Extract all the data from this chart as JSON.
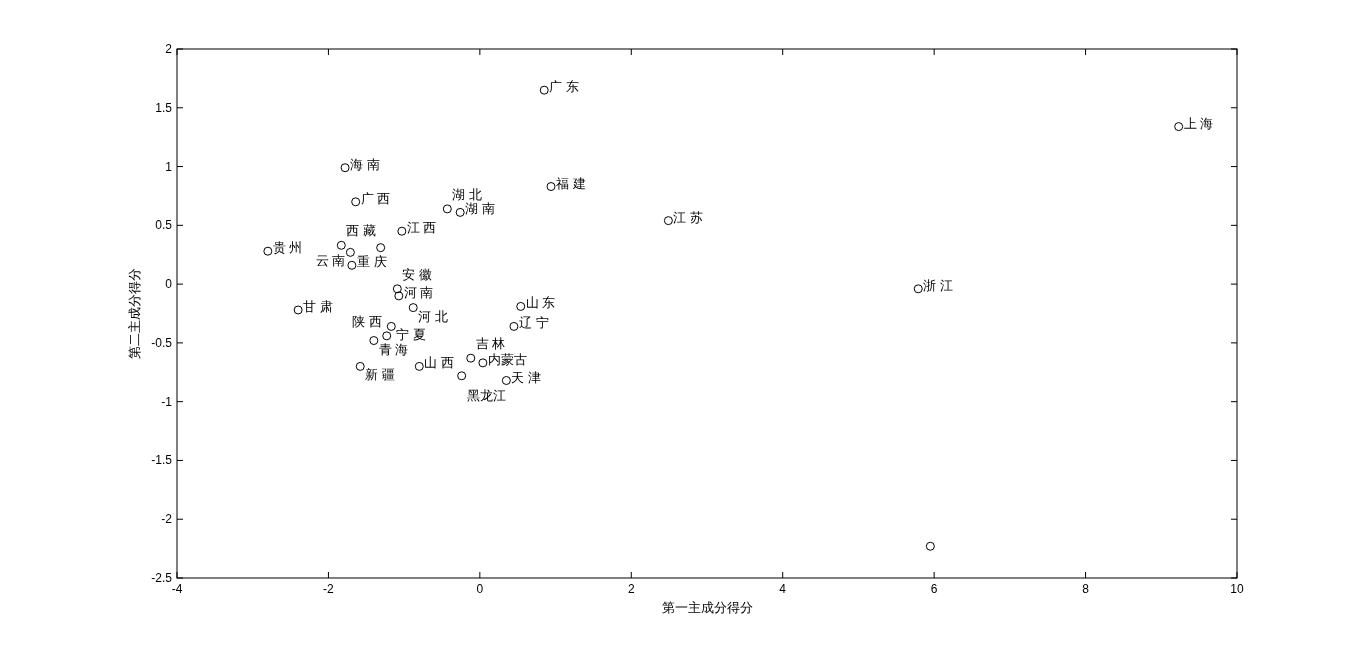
{
  "chart_data": {
    "type": "scatter",
    "xlabel": "第一主成分得分",
    "ylabel": "第二主成分得分",
    "marker": "circle",
    "xlim": [
      -4,
      10
    ],
    "ylim": [
      -2.5,
      2
    ],
    "xticks": [
      -4,
      -2,
      0,
      2,
      4,
      6,
      8,
      10
    ],
    "yticks": [
      -2.5,
      -2,
      -1.5,
      -1,
      -0.5,
      0,
      0.5,
      1,
      1.5,
      2
    ],
    "x": [
      0.85,
      9.23,
      -1.78,
      0.94,
      -1.64,
      -0.43,
      -0.26,
      2.49,
      -1.03,
      -2.8,
      -1.83,
      -1.71,
      -1.31,
      -1.69,
      5.79,
      -1.09,
      -1.07,
      -2.4,
      -0.88,
      0.54,
      0.45,
      -1.17,
      -1.4,
      -1.23,
      -1.58,
      -0.8,
      -0.12,
      0.04,
      -0.24,
      0.35,
      5.95
    ],
    "series": [
      {
        "color": "#000000",
        "values": [
          1.65,
          1.34,
          0.99,
          0.83,
          0.7,
          0.64,
          0.61,
          0.54,
          0.45,
          0.28,
          0.33,
          0.27,
          0.31,
          0.16,
          -0.04,
          -0.04,
          -0.1,
          -0.22,
          -0.2,
          -0.19,
          -0.36,
          -0.36,
          -0.48,
          -0.44,
          -0.7,
          -0.7,
          -0.63,
          -0.67,
          -0.78,
          -0.82,
          -2.23
        ]
      }
    ],
    "annotations": [
      {
        "text": "广 东",
        "x": 0.85,
        "y": 1.65
      },
      {
        "text": "上 海",
        "x": 9.23,
        "y": 1.34
      },
      {
        "text": "海 南",
        "x": -1.78,
        "y": 0.99
      },
      {
        "text": "福 建",
        "x": 0.94,
        "y": 0.83
      },
      {
        "text": "广 西",
        "x": -1.64,
        "y": 0.7
      },
      {
        "text": "湖 北",
        "x": -0.43,
        "y": 0.64
      },
      {
        "text": "湖 南",
        "x": -0.26,
        "y": 0.61
      },
      {
        "text": "江 苏",
        "x": 2.49,
        "y": 0.54
      },
      {
        "text": "江 西",
        "x": -1.03,
        "y": 0.45
      },
      {
        "text": "贵 州",
        "x": -2.8,
        "y": 0.28
      },
      {
        "text": "西 藏",
        "x": -1.83,
        "y": 0.33
      },
      {
        "text": "云 南",
        "x": -1.71,
        "y": 0.27
      },
      {
        "text": "重 庆",
        "x": -1.69,
        "y": 0.16
      },
      {
        "text": "浙 江",
        "x": 5.79,
        "y": -0.04
      },
      {
        "text": "安 徽",
        "x": -1.09,
        "y": -0.04
      },
      {
        "text": "河 南",
        "x": -1.07,
        "y": -0.1
      },
      {
        "text": "甘 肃",
        "x": -2.4,
        "y": -0.22
      },
      {
        "text": "河 北",
        "x": -0.88,
        "y": -0.2
      },
      {
        "text": "山 东",
        "x": 0.54,
        "y": -0.19
      },
      {
        "text": "辽 宁",
        "x": 0.45,
        "y": -0.36
      },
      {
        "text": "宁 夏",
        "x": -1.17,
        "y": -0.36
      },
      {
        "text": "青 海",
        "x": -1.4,
        "y": -0.48
      },
      {
        "text": "陕 西",
        "x": -1.23,
        "y": -0.44
      },
      {
        "text": "新 疆",
        "x": -1.58,
        "y": -0.7
      },
      {
        "text": "山 西",
        "x": -0.8,
        "y": -0.7
      },
      {
        "text": "吉 林",
        "x": -0.12,
        "y": -0.63
      },
      {
        "text": "内蒙古",
        "x": 0.04,
        "y": -0.67
      },
      {
        "text": "黑龙江",
        "x": -0.24,
        "y": -0.78
      },
      {
        "text": "天 津",
        "x": 0.35,
        "y": -0.82
      }
    ]
  }
}
